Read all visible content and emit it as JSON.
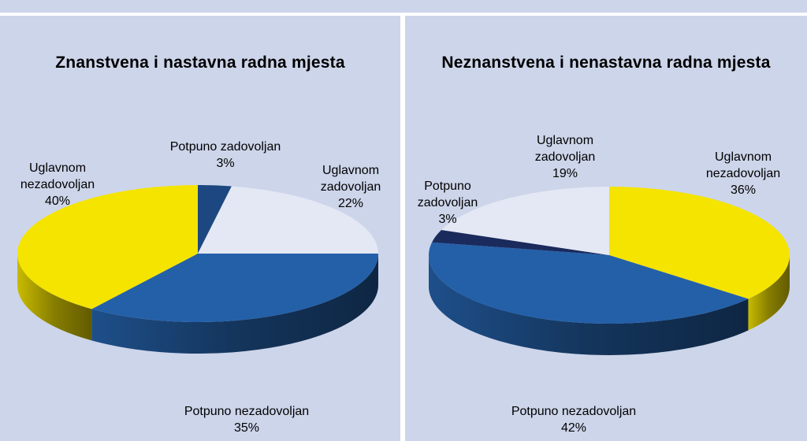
{
  "chart_data": [
    {
      "type": "pie",
      "title": "Znanstvena i nastavna radna mjesta",
      "slices": [
        {
          "label": "Potpuno zadovoljan",
          "value": 3,
          "display": "3%",
          "color": "#1c4780"
        },
        {
          "label": "Uglavnom zadovoljan",
          "value": 22,
          "display": "22%",
          "color": "#e4e8f4"
        },
        {
          "label": "Potpuno nezadovoljan",
          "value": 35,
          "display": "35%",
          "color": "#2460a8"
        },
        {
          "label": "Uglavnom nezadovoljan",
          "value": 40,
          "display": "40%",
          "color": "#f4e400"
        }
      ]
    },
    {
      "type": "pie",
      "title": "Neznanstvena i nenastavna radna mjesta",
      "slices": [
        {
          "label": "Uglavnom nezadovoljan",
          "value": 36,
          "display": "36%",
          "color": "#f4e400"
        },
        {
          "label": "Potpuno nezadovoljan",
          "value": 42,
          "display": "42%",
          "color": "#2460a8"
        },
        {
          "label": "Potpuno zadovoljan",
          "value": 3,
          "display": "3%",
          "color": "#1a2a5c"
        },
        {
          "label": "Uglavnom zadovoljan",
          "value": 19,
          "display": "19%",
          "color": "#e4e8f4"
        }
      ]
    }
  ]
}
